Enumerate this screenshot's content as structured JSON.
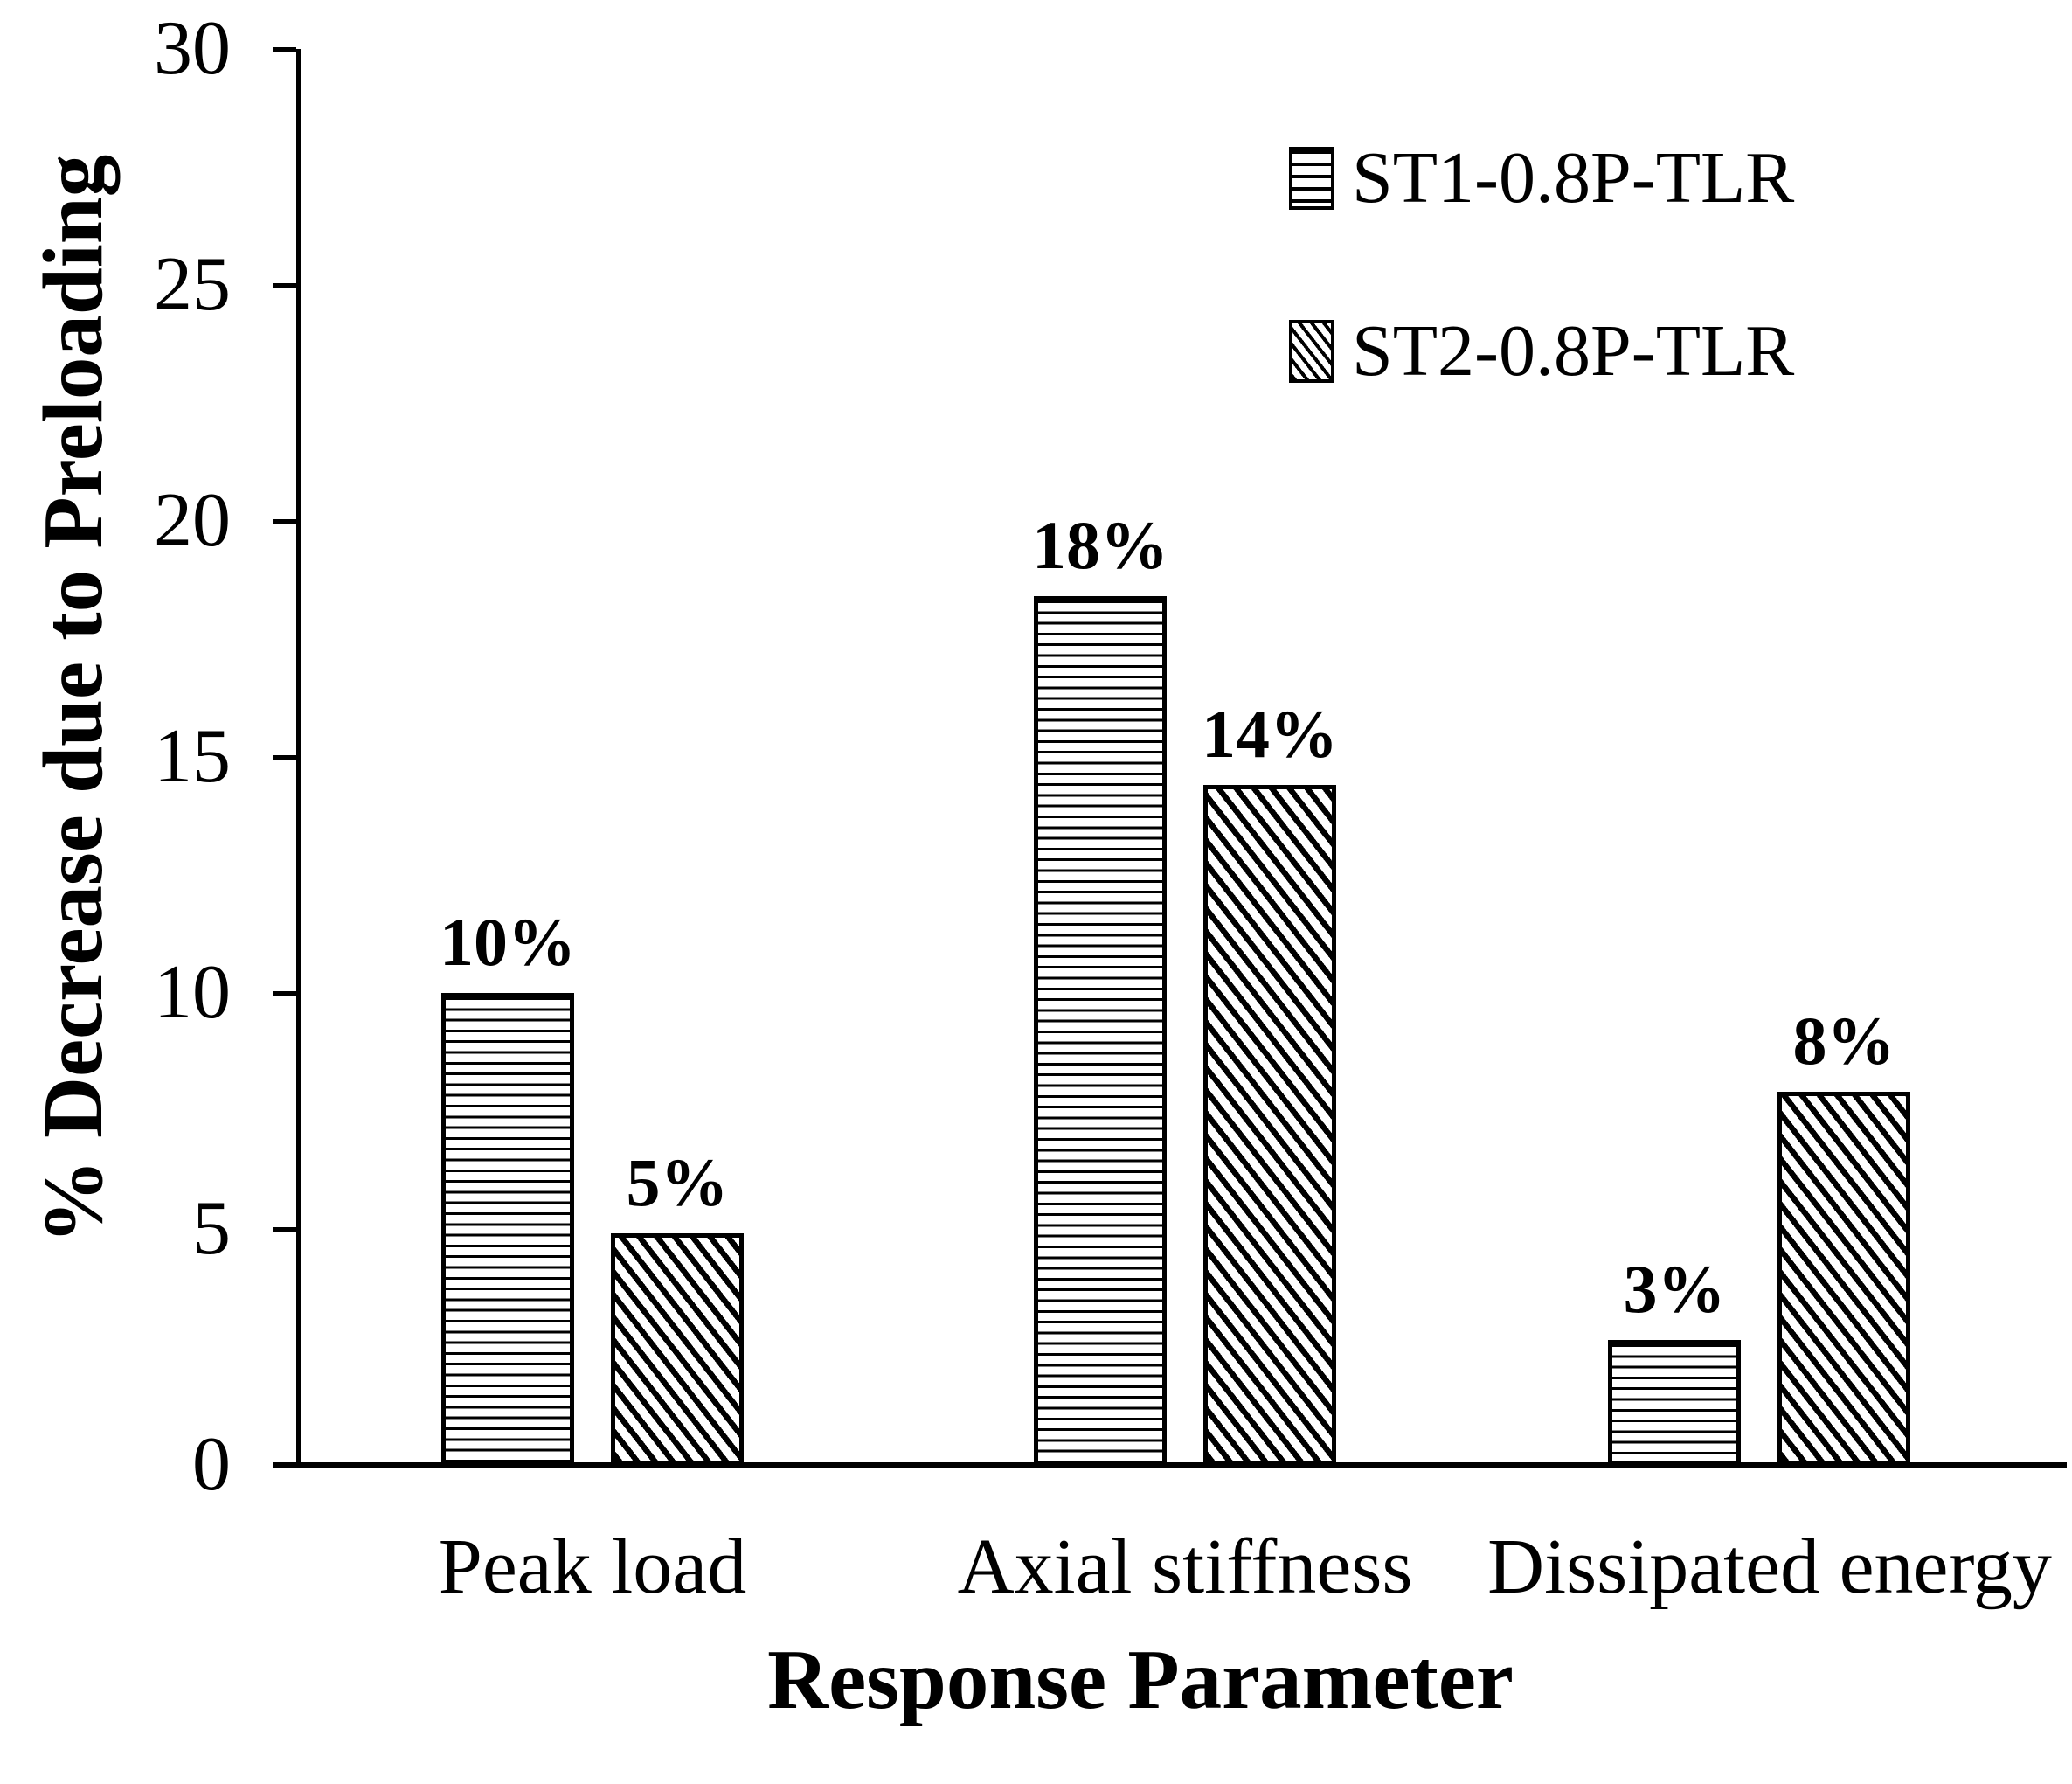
{
  "figure": {
    "background_color": "#ffffff",
    "ink_color": "#000000"
  },
  "chart_data": {
    "type": "bar",
    "title": "",
    "xlabel": "Response Parameter",
    "ylabel": "% Decrease due to Preloading",
    "categories": [
      "Peak load",
      "Axial stiffness",
      "Dissipated energy"
    ],
    "series": [
      {
        "name": "ST1-0.8P-TLR",
        "pattern": "horizontal-stripes",
        "values": [
          10,
          18,
          3
        ],
        "values_as_drawn": [
          10.0,
          18.4,
          2.65
        ],
        "labels": [
          "10%",
          "18%",
          "3%"
        ]
      },
      {
        "name": "ST2-0.8P-TLR",
        "pattern": "diagonal-stripes",
        "values": [
          5,
          14,
          8
        ],
        "values_as_drawn": [
          4.9,
          14.4,
          7.9
        ],
        "labels": [
          "5%",
          "14%",
          "8%"
        ]
      }
    ],
    "ylim": [
      0,
      30
    ],
    "ytick_step": 5,
    "yticks": [
      0,
      5,
      10,
      15,
      20,
      25,
      30
    ],
    "grid": false,
    "legend_position": "upper right",
    "bar_fill": "#ffffff",
    "bar_edge": "#000000"
  },
  "legend": {
    "items": [
      {
        "label": "ST1-0.8P-TLR",
        "swatch": "horizontal-stripes-icon"
      },
      {
        "label": "ST2-0.8P-TLR",
        "swatch": "diagonal-stripes-icon"
      }
    ]
  }
}
